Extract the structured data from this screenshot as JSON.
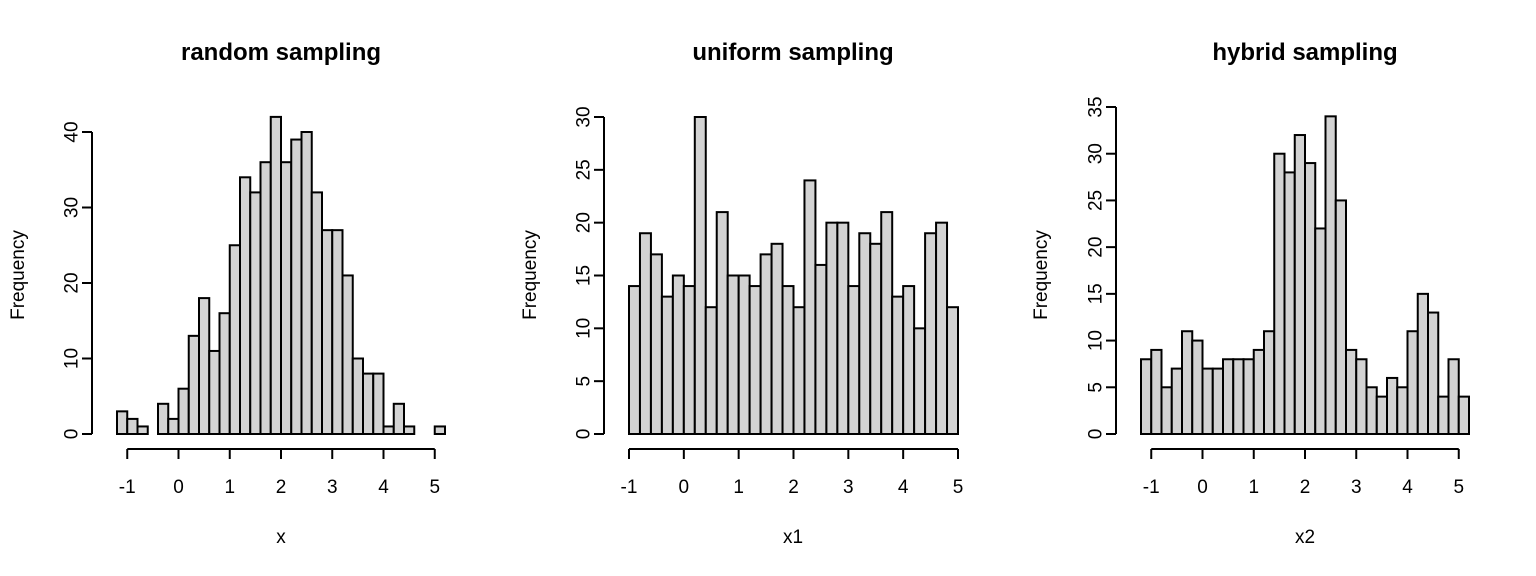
{
  "chart_data": [
    {
      "type": "bar",
      "title": "random sampling",
      "xlabel": "x",
      "ylabel": "Frequency",
      "bin_start": -1.2,
      "bin_width": 0.2,
      "values": [
        3,
        2,
        1,
        0,
        4,
        2,
        6,
        13,
        18,
        11,
        16,
        25,
        34,
        32,
        36,
        42,
        36,
        39,
        40,
        32,
        27,
        27,
        21,
        10,
        8,
        8,
        1,
        4,
        1,
        0,
        0,
        1
      ],
      "xticks": [
        "-1",
        "0",
        "1",
        "2",
        "3",
        "4",
        "5"
      ],
      "yticks": [
        "0",
        "10",
        "20",
        "30",
        "40"
      ],
      "xlim": [
        -1.2,
        5.2
      ],
      "ylim": [
        0,
        40
      ]
    },
    {
      "type": "bar",
      "title": "uniform sampling",
      "xlabel": "x1",
      "ylabel": "Frequency",
      "bin_start": -1.0,
      "bin_width": 0.2,
      "values": [
        14,
        19,
        17,
        13,
        15,
        14,
        30,
        12,
        21,
        15,
        15,
        14,
        17,
        18,
        14,
        12,
        24,
        16,
        20,
        20,
        14,
        19,
        18,
        21,
        13,
        14,
        10,
        19,
        20,
        12
      ],
      "xticks": [
        "-1",
        "0",
        "1",
        "2",
        "3",
        "4",
        "5"
      ],
      "yticks": [
        "0",
        "5",
        "10",
        "15",
        "20",
        "25",
        "30"
      ],
      "xlim": [
        -1.0,
        5.0
      ],
      "ylim": [
        0,
        30
      ]
    },
    {
      "type": "bar",
      "title": "hybrid sampling",
      "xlabel": "x2",
      "ylabel": "Frequency",
      "bin_start": -1.2,
      "bin_width": 0.2,
      "values": [
        8,
        9,
        5,
        7,
        11,
        10,
        7,
        7,
        8,
        8,
        8,
        9,
        11,
        30,
        28,
        32,
        29,
        22,
        34,
        25,
        9,
        8,
        5,
        4,
        6,
        5,
        11,
        15,
        13,
        4,
        8,
        4
      ],
      "xticks": [
        "-1",
        "0",
        "1",
        "2",
        "3",
        "4",
        "5"
      ],
      "yticks": [
        "0",
        "5",
        "10",
        "15",
        "20",
        "25",
        "30",
        "35"
      ],
      "xlim": [
        -1.2,
        5.2
      ],
      "ylim": [
        0,
        35
      ]
    }
  ]
}
